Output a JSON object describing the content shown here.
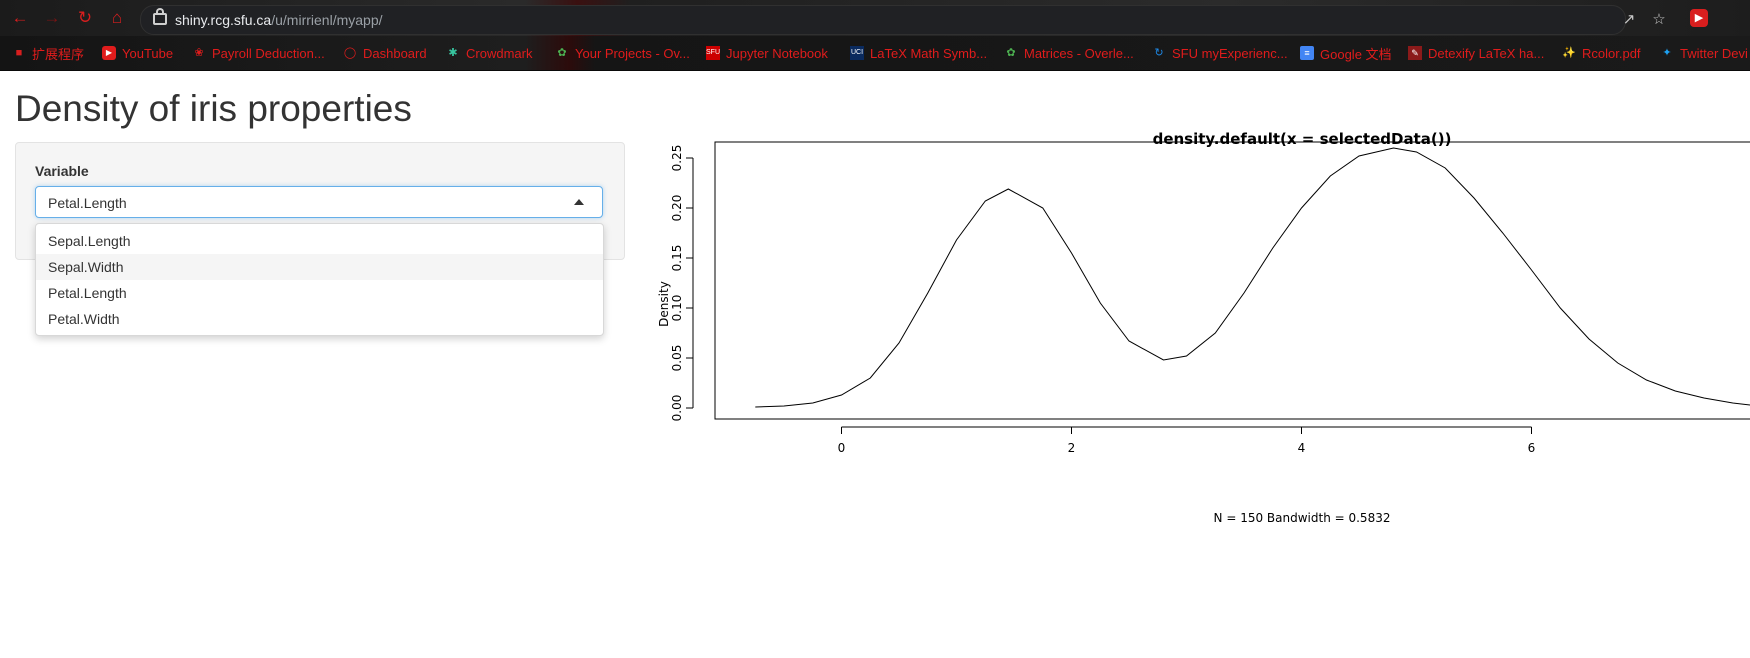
{
  "browser": {
    "url_host": "shiny.rcg.sfu.ca",
    "url_path": "/u/mirrienl/myapp/",
    "bookmarks": [
      {
        "label": "扩展程序",
        "icon": "puzzle-icon"
      },
      {
        "label": "YouTube",
        "icon": "youtube-icon"
      },
      {
        "label": "Payroll Deduction...",
        "icon": "maple-leaf-icon"
      },
      {
        "label": "Dashboard",
        "icon": "dashboard-icon"
      },
      {
        "label": "Crowdmark",
        "icon": "crowdmark-icon"
      },
      {
        "label": "Your Projects - Ov...",
        "icon": "overleaf-icon"
      },
      {
        "label": "Jupyter Notebook",
        "icon": "sfu-icon"
      },
      {
        "label": "LaTeX Math Symb...",
        "icon": "uci-icon"
      },
      {
        "label": "Matrices - Overle...",
        "icon": "overleaf-icon"
      },
      {
        "label": "SFU myExperienc...",
        "icon": "sfu-experience-icon"
      },
      {
        "label": "Google 文档",
        "icon": "google-docs-icon"
      },
      {
        "label": "Detexify LaTeX ha...",
        "icon": "detexify-icon"
      },
      {
        "label": "Rcolor.pdf",
        "icon": "pdf-icon"
      },
      {
        "label": "Twitter Devi",
        "icon": "twitter-icon"
      }
    ]
  },
  "app": {
    "title": "Density of iris properties",
    "variable_label": "Variable",
    "selected_value": "Petal.Length",
    "options": [
      "Sepal.Length",
      "Sepal.Width",
      "Petal.Length",
      "Petal.Width"
    ],
    "highlighted_option": "Sepal.Width"
  },
  "chart_data": {
    "type": "line",
    "title": "density.default(x = selectedData())",
    "xlabel": "N = 150   Bandwidth = 0.5832",
    "ylabel": "Density",
    "x_ticks": [
      0,
      2,
      4,
      6
    ],
    "y_ticks": [
      0.0,
      0.05,
      0.1,
      0.15,
      0.2,
      0.25
    ],
    "y_tick_labels": [
      "0.00",
      "0.05",
      "0.10",
      "0.15",
      "0.20",
      "0.25"
    ],
    "xlim": [
      -1.1,
      7.9
    ],
    "ylim": [
      -0.011,
      0.266
    ],
    "series": [
      {
        "x": [
          -0.75,
          -0.5,
          -0.25,
          0,
          0.25,
          0.5,
          0.75,
          1.0,
          1.25,
          1.45,
          1.75,
          2.0,
          2.25,
          2.5,
          2.8,
          3.0,
          3.25,
          3.5,
          3.75,
          4.0,
          4.25,
          4.5,
          4.8,
          5.0,
          5.25,
          5.5,
          5.75,
          6.0,
          6.25,
          6.5,
          6.75,
          7.0,
          7.25,
          7.5,
          7.75,
          7.9
        ],
        "y": [
          0.001,
          0.002,
          0.005,
          0.013,
          0.03,
          0.065,
          0.115,
          0.168,
          0.207,
          0.219,
          0.2,
          0.155,
          0.105,
          0.067,
          0.048,
          0.052,
          0.075,
          0.115,
          0.16,
          0.2,
          0.232,
          0.252,
          0.26,
          0.256,
          0.24,
          0.21,
          0.175,
          0.138,
          0.1,
          0.069,
          0.045,
          0.028,
          0.017,
          0.01,
          0.005,
          0.003
        ]
      }
    ]
  }
}
